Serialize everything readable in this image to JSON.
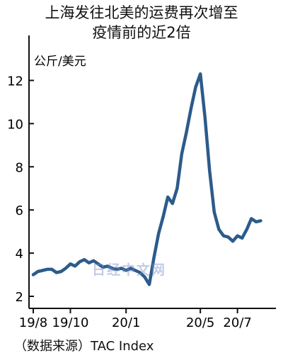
{
  "title_line1": "上海发往北美的运费再次增至",
  "title_line2": "疫情前的近2倍",
  "source": "（数据来源）TAC Index",
  "watermark": "日经中文网",
  "colors": {
    "line": "#2c5b8a",
    "axis": "#111111"
  },
  "chart_data": {
    "type": "line",
    "title": "上海发往北美的运费再次增至疫情前的近2倍",
    "ylabel": "公斤/美元",
    "xlabel": "",
    "ylim": [
      2,
      13
    ],
    "yticks": [
      2,
      4,
      6,
      8,
      10,
      12
    ],
    "x_range": [
      0,
      12.5
    ],
    "xticks": [
      {
        "label": "19/8",
        "x": 0
      },
      {
        "label": "19/10",
        "x": 2
      },
      {
        "label": "20/1",
        "x": 5
      },
      {
        "label": "20/5",
        "x": 9
      },
      {
        "label": "20/7",
        "x": 11
      }
    ],
    "grid": false,
    "series": [
      {
        "x": [
          0,
          0.25,
          0.5,
          0.75,
          1,
          1.25,
          1.5,
          1.75,
          2,
          2.25,
          2.5,
          2.75,
          3,
          3.25,
          3.5,
          3.75,
          4,
          4.25,
          4.5,
          4.75,
          5,
          5.25,
          5.5,
          5.75,
          6,
          6.25,
          6.5,
          6.75,
          7,
          7.25,
          7.5,
          7.75,
          8,
          8.25,
          8.5,
          8.75,
          9,
          9.25,
          9.5,
          9.75,
          10,
          10.25,
          10.5,
          10.75,
          11,
          11.25,
          11.5,
          11.75,
          12,
          12.25
        ],
        "values": [
          3.0,
          3.15,
          3.2,
          3.25,
          3.25,
          3.1,
          3.15,
          3.3,
          3.5,
          3.4,
          3.6,
          3.7,
          3.55,
          3.65,
          3.5,
          3.35,
          3.4,
          3.3,
          3.25,
          3.3,
          3.2,
          3.3,
          3.2,
          3.1,
          2.9,
          2.55,
          3.8,
          4.9,
          5.7,
          6.6,
          6.3,
          7.0,
          8.6,
          9.6,
          10.7,
          11.7,
          12.3,
          10.3,
          7.8,
          5.9,
          5.1,
          4.8,
          4.75,
          4.55,
          4.8,
          4.7,
          5.1,
          5.6,
          5.45,
          5.5
        ]
      }
    ]
  }
}
